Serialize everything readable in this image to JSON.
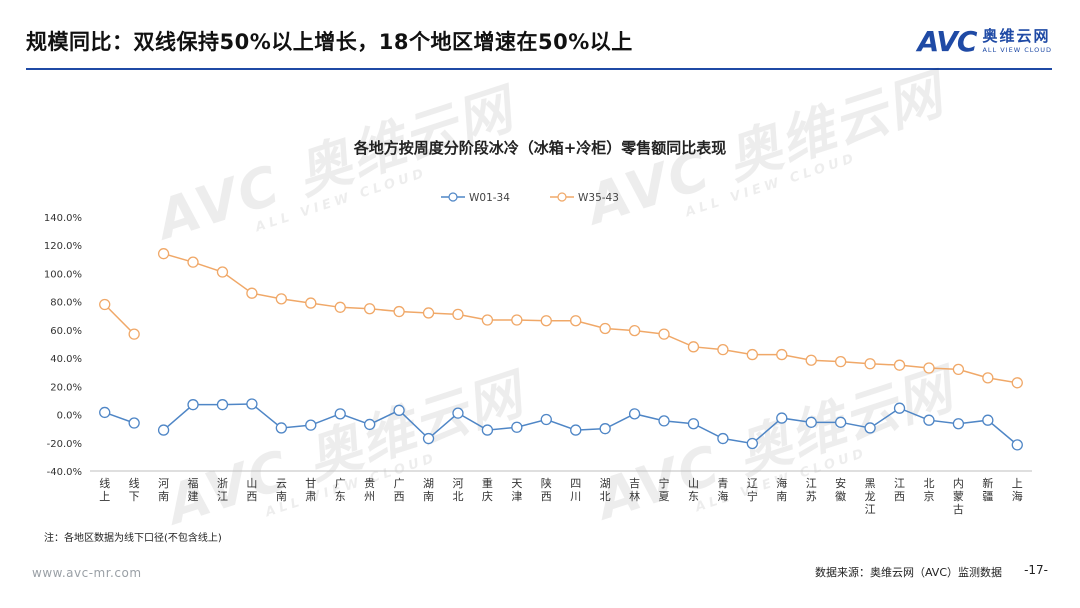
{
  "header": {
    "title": "规模同比：双线保持50%以上增长，18个地区增速在50%以上",
    "brand_mark": "AVC",
    "brand_cn": "奥维云网",
    "brand_en": "ALL VIEW CLOUD"
  },
  "watermark": {
    "main": "AVC 奥维云网",
    "sub": "ALL VIEW CLOUD"
  },
  "chart_data": {
    "type": "line",
    "title": "各地方按周度分阶段冰冷（冰箱+冷柜）零售额同比表现",
    "xlabel": "",
    "ylabel": "",
    "ylim": [
      -40,
      140
    ],
    "yticks": [
      -40,
      -20,
      0,
      20,
      40,
      60,
      80,
      100,
      120,
      140
    ],
    "ytick_labels": [
      "-40.0%",
      "-20.0%",
      "0.0%",
      "20.0%",
      "40.0%",
      "60.0%",
      "80.0%",
      "100.0%",
      "120.0%",
      "140.0%"
    ],
    "grid": false,
    "legend_position": "top-center",
    "categories": [
      "线上",
      "线下",
      "河南",
      "福建",
      "浙江",
      "山西",
      "云南",
      "甘肃",
      "广东",
      "贵州",
      "广西",
      "湖南",
      "河北",
      "重庆",
      "天津",
      "陕西",
      "四川",
      "湖北",
      "吉林",
      "宁夏",
      "山东",
      "青海",
      "辽宁",
      "海南",
      "江苏",
      "安徽",
      "黑龙江",
      "江西",
      "北京",
      "内蒙古",
      "新疆",
      "上海"
    ],
    "series": [
      {
        "name": "W01-34",
        "color": "#4f86c6",
        "values": [
          1.5,
          -6,
          -11,
          7,
          7,
          7.5,
          -9.5,
          -7.5,
          0.5,
          -7,
          3,
          -17,
          1,
          -11,
          -9,
          -3.5,
          -11,
          -10,
          0.5,
          -4.5,
          -6.5,
          -17,
          -20.5,
          -2.5,
          -5.5,
          -5.5,
          -9.5,
          4.5,
          -4,
          -6.5,
          -4,
          -21.5
        ],
        "segments": [
          [
            0,
            1
          ],
          [
            2,
            31
          ]
        ]
      },
      {
        "name": "W35-43",
        "color": "#f0a868",
        "values": [
          78,
          57,
          114,
          108,
          101,
          86,
          82,
          79,
          76,
          75,
          73,
          72,
          71,
          67,
          67,
          66.5,
          66.5,
          61,
          59.5,
          57,
          48,
          46,
          42.5,
          42.5,
          38.5,
          37.5,
          36,
          35,
          33,
          32,
          26,
          22.5
        ],
        "segments": [
          [
            0,
            1
          ],
          [
            2,
            31
          ]
        ]
      }
    ]
  },
  "footer": {
    "note": "注：各地区数据为线下口径(不包含线上)",
    "site": "www.avc-mr.com",
    "source": "数据来源：奥维云网（AVC）监测数据",
    "page": "-17-"
  }
}
